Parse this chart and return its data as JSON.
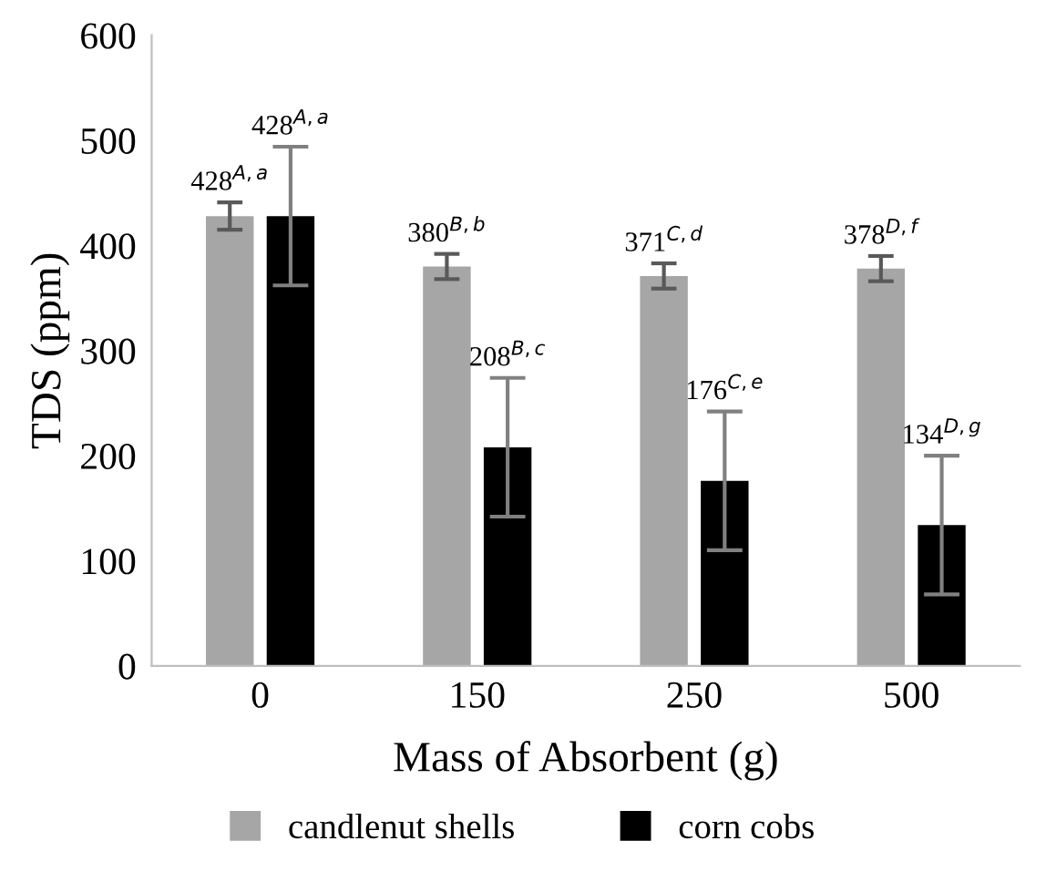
{
  "chart_data": {
    "type": "bar",
    "xlabel": "Mass of Absorbent (g)",
    "ylabel": "TDS (ppm)",
    "categories": [
      "0",
      "150",
      "250",
      "500"
    ],
    "series": [
      {
        "name": "candlenut shells",
        "color": "#a6a6a6",
        "values": [
          428,
          380,
          371,
          378
        ],
        "errors": [
          13,
          12,
          12,
          12
        ],
        "value_labels": [
          "428$^{A,a}$",
          "380$^{B,b}$",
          "371$^{C,d}$",
          "378$^{D,f}$"
        ]
      },
      {
        "name": "corn cobs",
        "color": "#000000",
        "values": [
          428,
          208,
          176,
          134
        ],
        "errors": [
          66,
          66,
          66,
          66
        ],
        "value_labels": [
          "428$^{A,a}$",
          "208$^{B,c}$",
          "176$^{C,e}$",
          "134$^{D,g}$"
        ]
      }
    ],
    "ylim": [
      0,
      600
    ],
    "yticks": [
      0,
      100,
      200,
      300,
      400,
      500,
      600
    ],
    "grid": false,
    "legend": "bottom"
  }
}
